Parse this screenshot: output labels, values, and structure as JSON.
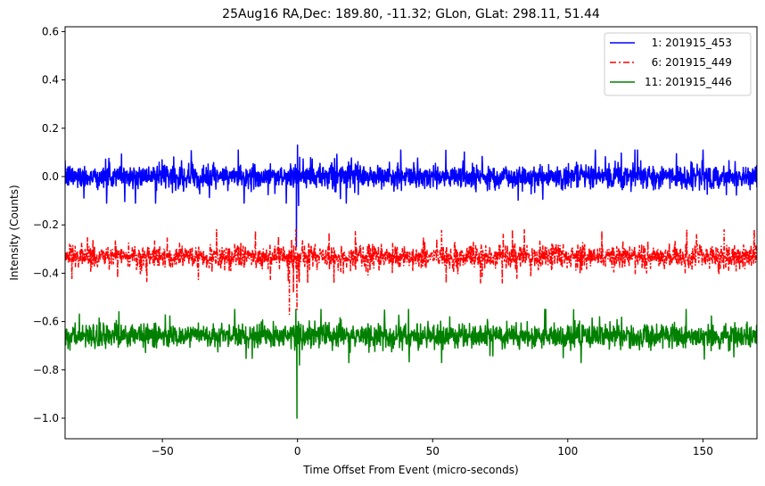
{
  "chart_data": {
    "type": "line",
    "title": "25Aug16 RA,Dec:  189.80, -11.32; GLon, GLat:  298.11,  51.44",
    "xlabel": "Time Offset From Event (micro-seconds)",
    "ylabel": "Intensity (Counts)",
    "xlim": [
      -86,
      170
    ],
    "ylim": [
      -1.085,
      0.62
    ],
    "xticks": [
      -50,
      0,
      50,
      100,
      150
    ],
    "xtick_labels": [
      "−50",
      "0",
      "50",
      "100",
      "150"
    ],
    "yticks": [
      0.6,
      0.4,
      0.2,
      0.0,
      -0.2,
      -0.4,
      -0.6,
      -0.8,
      -1.0
    ],
    "ytick_labels": [
      "0.6",
      "0.4",
      "0.2",
      "0.0",
      "−0.2",
      "−0.4",
      "−0.6",
      "−0.8",
      "−1.0"
    ],
    "grid": false,
    "legend_position": "upper right",
    "series": [
      {
        "name": "1: 201915_453",
        "legend_label": "  1: 201915_453",
        "color": "#0000ff",
        "linestyle": "solid",
        "baseline": 0.0,
        "noise_amplitude": 0.045,
        "noise_extreme": 0.11,
        "event_spikes": [
          {
            "x": -0.8,
            "y": 0.05
          },
          {
            "x": -0.4,
            "y": -0.29
          },
          {
            "x": 0.0,
            "y": 0.13
          },
          {
            "x": 0.4,
            "y": -0.12
          },
          {
            "x": 0.8,
            "y": 0.08
          }
        ]
      },
      {
        "name": "6: 201915_449",
        "legend_label": "  6: 201915_449",
        "color": "#ff0000",
        "linestyle": "dashdot",
        "baseline": -0.33,
        "noise_amplitude": 0.045,
        "noise_extreme": 0.11,
        "event_spikes": [
          {
            "x": -3.0,
            "y": -0.57
          },
          {
            "x": -2.2,
            "y": -0.26
          },
          {
            "x": -1.5,
            "y": -0.48
          },
          {
            "x": -0.6,
            "y": -0.22
          },
          {
            "x": -0.2,
            "y": -0.55
          },
          {
            "x": 0.5,
            "y": -0.43
          },
          {
            "x": 79.5,
            "y": -0.22
          }
        ]
      },
      {
        "name": "11: 201915_446",
        "legend_label": "11: 201915_446",
        "color": "#008000",
        "linestyle": "solid",
        "baseline": -0.66,
        "noise_amplitude": 0.045,
        "noise_extreme": 0.11,
        "event_spikes": [
          {
            "x": -0.6,
            "y": -0.55
          },
          {
            "x": -0.2,
            "y": -1.0
          },
          {
            "x": 0.3,
            "y": -0.6
          },
          {
            "x": 0.7,
            "y": -0.78
          }
        ]
      }
    ]
  }
}
